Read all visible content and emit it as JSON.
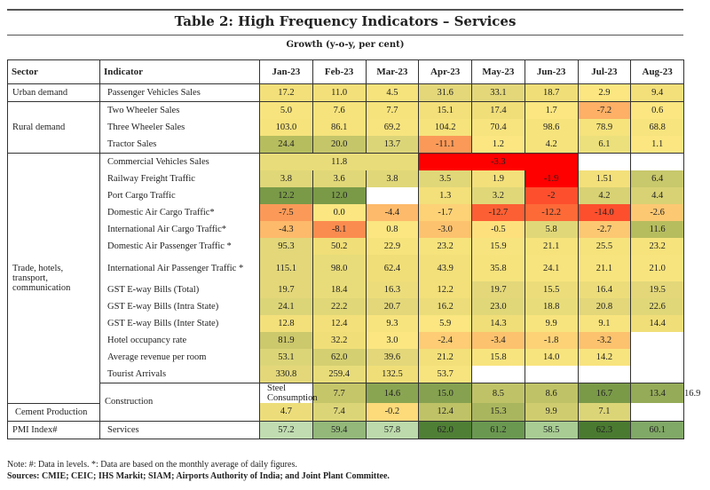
{
  "title": "Table 2: High Frequency Indicators – Services",
  "subtitle": "Growth (y-o-y, per cent)",
  "headers": {
    "sector": "Sector",
    "indicator": "Indicator",
    "months": [
      "Jan-23",
      "Feb-23",
      "Mar-23",
      "Apr-23",
      "May-23",
      "Jun-23",
      "Jul-23",
      "Aug-23"
    ]
  },
  "rows": [
    {
      "sector": "Urban demand",
      "sector_span": 1,
      "group": true,
      "indicator": "Passenger Vehicles Sales",
      "cells": [
        {
          "v": "17.2",
          "c": "#f3e07a"
        },
        {
          "v": "11.0",
          "c": "#f3e07a"
        },
        {
          "v": "4.5",
          "c": "#f6e37c"
        },
        {
          "v": "31.6",
          "c": "#e3d77a"
        },
        {
          "v": "33.1",
          "c": "#e3d77a"
        },
        {
          "v": "18.7",
          "c": "#f0de78"
        },
        {
          "v": "2.9",
          "c": "#fbe681"
        },
        {
          "v": "9.4",
          "c": "#f3e07a"
        }
      ]
    },
    {
      "sector": "Rural demand",
      "sector_span": 3,
      "group": true,
      "indicator": "Two Wheeler Sales",
      "cells": [
        {
          "v": "5.0",
          "c": "#f8e47e"
        },
        {
          "v": "7.6",
          "c": "#f6e37c"
        },
        {
          "v": "7.7",
          "c": "#f6e37c"
        },
        {
          "v": "15.1",
          "c": "#f3e07a"
        },
        {
          "v": "17.4",
          "c": "#f0de78"
        },
        {
          "v": "1.7",
          "c": "#fbe681"
        },
        {
          "v": "-7.2",
          "c": "#fdb066"
        },
        {
          "v": "0.6",
          "c": "#fbe681"
        }
      ]
    },
    {
      "indicator": "Three Wheeler Sales",
      "cells": [
        {
          "v": "103.0",
          "c": "#f6e37c"
        },
        {
          "v": "86.1",
          "c": "#f6e37c"
        },
        {
          "v": "69.2",
          "c": "#f8e47e"
        },
        {
          "v": "104.2",
          "c": "#f6e37c"
        },
        {
          "v": "70.4",
          "c": "#f8e47e"
        },
        {
          "v": "98.6",
          "c": "#f6e37c"
        },
        {
          "v": "78.9",
          "c": "#f6e37c"
        },
        {
          "v": "68.8",
          "c": "#f8e47e"
        }
      ]
    },
    {
      "indicator": "Tractor Sales",
      "cells": [
        {
          "v": "24.4",
          "c": "#b6bd5e"
        },
        {
          "v": "20.0",
          "c": "#c5c56a"
        },
        {
          "v": "13.7",
          "c": "#dcd578"
        },
        {
          "v": "-11.1",
          "c": "#fb9a58"
        },
        {
          "v": "1.2",
          "c": "#fbe681"
        },
        {
          "v": "4.2",
          "c": "#f6e37c"
        },
        {
          "v": "6.1",
          "c": "#ece07c"
        },
        {
          "v": "1.1",
          "c": "#fbe681"
        }
      ]
    },
    {
      "sector": "Trade, hotels, transport, communication",
      "sector_span": 14,
      "group": true,
      "indicator": "Commercial Vehicles Sales",
      "cells": [
        {
          "v": "11.8",
          "c": "#e8dc7a",
          "span": 3
        },
        {
          "v": "-3.3",
          "c": "#ff0000",
          "span": 3
        },
        {
          "v": "",
          "c": "#ffffff"
        },
        {
          "v": "",
          "c": "#ffffff"
        }
      ]
    },
    {
      "indicator": "Railway Freight Traffic",
      "cells": [
        {
          "v": "3.8",
          "c": "#e0d778"
        },
        {
          "v": "3.6",
          "c": "#e0d778"
        },
        {
          "v": "3.8",
          "c": "#e0d778"
        },
        {
          "v": "3.5",
          "c": "#e0d778"
        },
        {
          "v": "1.9",
          "c": "#f3e07a"
        },
        {
          "v": "-1.9",
          "c": "#ff0000"
        },
        {
          "v": "1.51",
          "c": "#f3e07a"
        },
        {
          "v": "6.4",
          "c": "#c8c86c"
        }
      ]
    },
    {
      "indicator": "Port Cargo Traffic",
      "cells": [
        {
          "v": "12.2",
          "c": "#7a9a48"
        },
        {
          "v": "12.0",
          "c": "#7a9a48"
        },
        {
          "v": "",
          "c": "#ffffff"
        },
        {
          "v": "1.3",
          "c": "#f3e07a"
        },
        {
          "v": "3.2",
          "c": "#e0d778"
        },
        {
          "v": "-2",
          "c": "#fd4f2e"
        },
        {
          "v": "4.2",
          "c": "#d8d274"
        },
        {
          "v": "4.4",
          "c": "#d8d274"
        }
      ]
    },
    {
      "indicator": "Domestic Air Cargo Traffic*",
      "cells": [
        {
          "v": "-7.5",
          "c": "#fb9a58"
        },
        {
          "v": "0.0",
          "c": "#fbe681"
        },
        {
          "v": "-4.4",
          "c": "#fdba6a"
        },
        {
          "v": "-1.7",
          "c": "#fdd277"
        },
        {
          "v": "-12.7",
          "c": "#fd5f34"
        },
        {
          "v": "-12.2",
          "c": "#fd6a38"
        },
        {
          "v": "-14.0",
          "c": "#fd4f2e"
        },
        {
          "v": "-2.6",
          "c": "#fdc872"
        }
      ]
    },
    {
      "indicator": "International Air Cargo Traffic*",
      "cells": [
        {
          "v": "-4.3",
          "c": "#fdba6a"
        },
        {
          "v": "-8.1",
          "c": "#fb8c50"
        },
        {
          "v": "0.8",
          "c": "#fbe681"
        },
        {
          "v": "-3.0",
          "c": "#fdc26e"
        },
        {
          "v": "-0.5",
          "c": "#fde07c"
        },
        {
          "v": "5.8",
          "c": "#e0d778"
        },
        {
          "v": "-2.7",
          "c": "#fdc872"
        },
        {
          "v": "11.6",
          "c": "#b6bd5e"
        }
      ]
    },
    {
      "indicator": "Domestic Air Passenger Traffic *",
      "cells": [
        {
          "v": "95.3",
          "c": "#e3d77a"
        },
        {
          "v": "50.2",
          "c": "#f0de78"
        },
        {
          "v": "22.9",
          "c": "#f6e37c"
        },
        {
          "v": "23.2",
          "c": "#f6e37c"
        },
        {
          "v": "15.9",
          "c": "#f8e47e"
        },
        {
          "v": "21.1",
          "c": "#f6e37c"
        },
        {
          "v": "25.5",
          "c": "#f6e37c"
        },
        {
          "v": "23.2",
          "c": "#f6e37c"
        }
      ]
    },
    {
      "indicator": "International Air Passenger Traffic *",
      "tall": true,
      "cells": [
        {
          "v": "115.1",
          "c": "#e3d77a"
        },
        {
          "v": "98.0",
          "c": "#e8dc7a"
        },
        {
          "v": "62.4",
          "c": "#f0de78"
        },
        {
          "v": "43.9",
          "c": "#f3e07a"
        },
        {
          "v": "35.8",
          "c": "#f6e37c"
        },
        {
          "v": "24.1",
          "c": "#f8e47e"
        },
        {
          "v": "21.1",
          "c": "#f8e47e"
        },
        {
          "v": "21.0",
          "c": "#f8e47e"
        }
      ]
    },
    {
      "indicator": "GST E-way Bills (Total)",
      "cells": [
        {
          "v": "19.7",
          "c": "#e3d77a"
        },
        {
          "v": "18.4",
          "c": "#e8dc7a"
        },
        {
          "v": "16.3",
          "c": "#ecdd7a"
        },
        {
          "v": "12.2",
          "c": "#f3e07a"
        },
        {
          "v": "19.7",
          "c": "#e3d77a"
        },
        {
          "v": "15.5",
          "c": "#ecdd7a"
        },
        {
          "v": "16.4",
          "c": "#ecdd7a"
        },
        {
          "v": "19.5",
          "c": "#e3d77a"
        }
      ]
    },
    {
      "indicator": "GST E-way Bills (Intra State)",
      "cells": [
        {
          "v": "24.1",
          "c": "#dcd578"
        },
        {
          "v": "22.2",
          "c": "#e0d778"
        },
        {
          "v": "20.7",
          "c": "#e3d77a"
        },
        {
          "v": "16.2",
          "c": "#ecdd7a"
        },
        {
          "v": "23.0",
          "c": "#e0d778"
        },
        {
          "v": "18.8",
          "c": "#e8dc7a"
        },
        {
          "v": "20.8",
          "c": "#e3d77a"
        },
        {
          "v": "22.6",
          "c": "#e0d778"
        }
      ]
    },
    {
      "indicator": "GST E-way Bills (Inter State)",
      "cells": [
        {
          "v": "12.8",
          "c": "#f3e07a"
        },
        {
          "v": "12.4",
          "c": "#f3e07a"
        },
        {
          "v": "9.3",
          "c": "#f8e47e"
        },
        {
          "v": "5.9",
          "c": "#fbe681"
        },
        {
          "v": "14.3",
          "c": "#f0de78"
        },
        {
          "v": "9.9",
          "c": "#f8e47e"
        },
        {
          "v": "9.1",
          "c": "#f8e47e"
        },
        {
          "v": "14.4",
          "c": "#f0de78"
        }
      ]
    },
    {
      "indicator": "Hotel occupancy rate",
      "cells": [
        {
          "v": "81.9",
          "c": "#ccc86c"
        },
        {
          "v": "32.2",
          "c": "#f0de78"
        },
        {
          "v": "3.0",
          "c": "#fbe681"
        },
        {
          "v": "-2.4",
          "c": "#fdcc74"
        },
        {
          "v": "-3.4",
          "c": "#fdc26e"
        },
        {
          "v": "-1.8",
          "c": "#fdd277"
        },
        {
          "v": "-3.2",
          "c": "#fdc26e"
        },
        {
          "v": "",
          "c": "#ffffff"
        }
      ]
    },
    {
      "indicator": "Average revenue per room",
      "cells": [
        {
          "v": "53.1",
          "c": "#dcd578"
        },
        {
          "v": "62.0",
          "c": "#d4d072"
        },
        {
          "v": "39.6",
          "c": "#e3d77a"
        },
        {
          "v": "21.2",
          "c": "#f3e07a"
        },
        {
          "v": "15.8",
          "c": "#f8e47e"
        },
        {
          "v": "14.0",
          "c": "#f8e47e"
        },
        {
          "v": "14.2",
          "c": "#f8e47e"
        },
        {
          "v": "",
          "c": "#ffffff"
        }
      ]
    },
    {
      "indicator": "Tourist Arrivals",
      "cells": [
        {
          "v": "330.8",
          "c": "#e3d77a"
        },
        {
          "v": "259.4",
          "c": "#e8dc7a"
        },
        {
          "v": "132.5",
          "c": "#f0de78"
        },
        {
          "v": "53.7",
          "c": "#f8e47e"
        },
        {
          "v": "",
          "c": "#ffffff"
        },
        {
          "v": "",
          "c": "#ffffff"
        },
        {
          "v": "",
          "c": "#ffffff"
        },
        {
          "v": "",
          "c": "#ffffff"
        }
      ]
    },
    {
      "sector": "Construction",
      "sector_span": 2,
      "group": true,
      "indicator": "Steel Consumption",
      "cells": [
        {
          "v": "7.7",
          "c": "#c5c56a"
        },
        {
          "v": "14.6",
          "c": "#8aa552"
        },
        {
          "v": "15.0",
          "c": "#86a250"
        },
        {
          "v": "8.5",
          "c": "#bfc266"
        },
        {
          "v": "8.6",
          "c": "#bfc266"
        },
        {
          "v": "16.7",
          "c": "#7a9a48"
        },
        {
          "v": "13.4",
          "c": "#95ab58"
        },
        {
          "v": "16.9",
          "c": "#7a9a48"
        }
      ]
    },
    {
      "indicator": "Cement Production",
      "cells": [
        {
          "v": "4.7",
          "c": "#ecdd7a"
        },
        {
          "v": "7.4",
          "c": "#dcd578"
        },
        {
          "v": "-0.2",
          "c": "#fdda7a"
        },
        {
          "v": "12.4",
          "c": "#bfc266"
        },
        {
          "v": "15.3",
          "c": "#aab65e"
        },
        {
          "v": "9.9",
          "c": "#cfcc70"
        },
        {
          "v": "7.1",
          "c": "#dcd578"
        },
        {
          "v": "",
          "c": "#ffffff"
        }
      ]
    },
    {
      "sector": "PMI Index#",
      "sector_span": 1,
      "group": true,
      "last": true,
      "indicator": "Services",
      "cells": [
        {
          "v": "57.2",
          "c": "#c0dcb0"
        },
        {
          "v": "59.4",
          "c": "#93b87a"
        },
        {
          "v": "57.8",
          "c": "#bcdaab"
        },
        {
          "v": "62.0",
          "c": "#4f7f35"
        },
        {
          "v": "61.2",
          "c": "#6a9850"
        },
        {
          "v": "58.5",
          "c": "#a8cc94"
        },
        {
          "v": "62.3",
          "c": "#4a7a30"
        },
        {
          "v": "60.1",
          "c": "#80a866"
        }
      ]
    }
  ],
  "notes": {
    "note": "Note: #: Data in levels. *: Data are based on the monthly average of daily figures.",
    "sources": "Sources: CMIE; CEIC; IHS Markit; SIAM; Airports Authority of India; and Joint Plant Committee."
  }
}
